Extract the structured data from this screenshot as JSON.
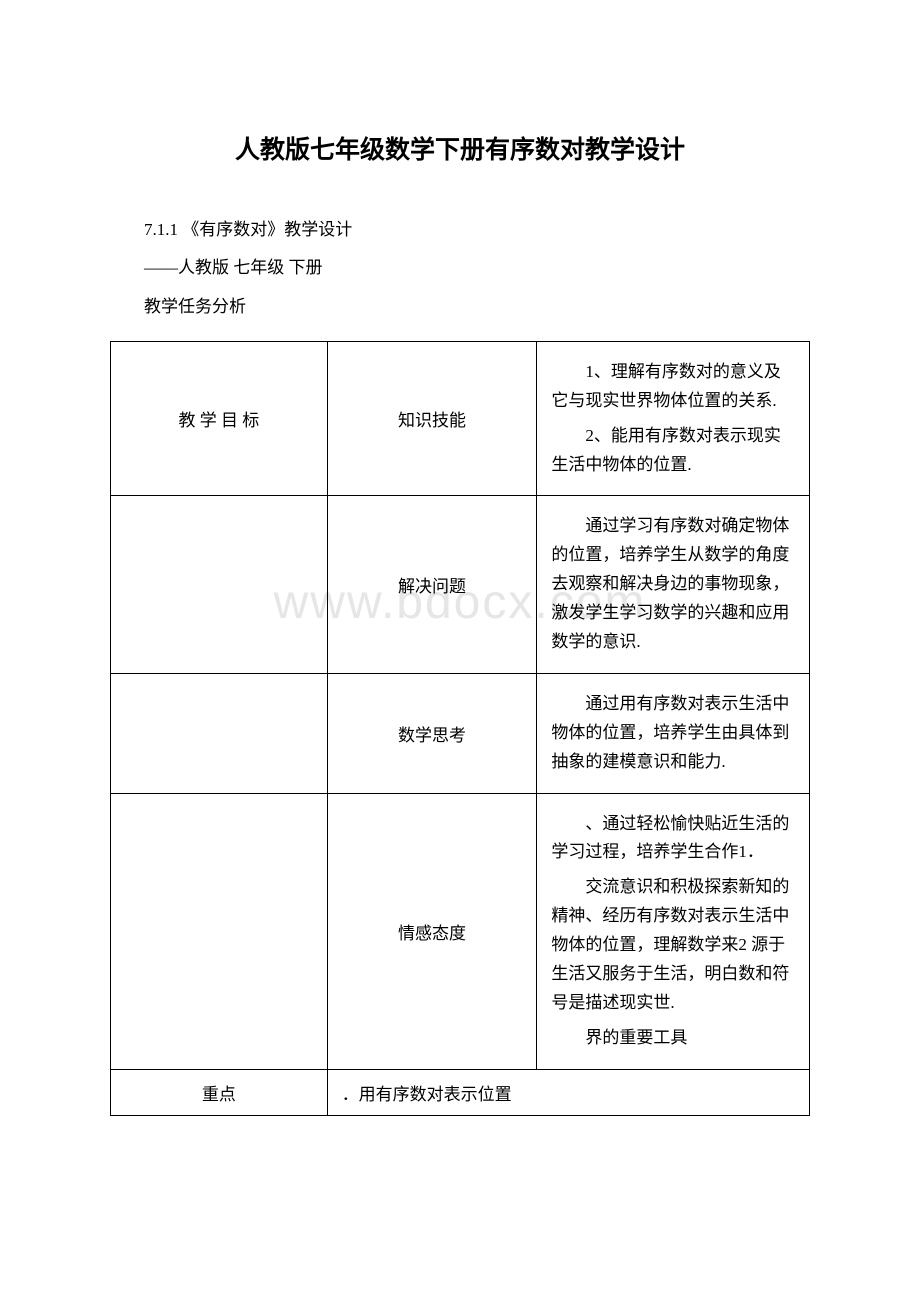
{
  "watermark": "www.bdocx.com",
  "title": "人教版七年级数学下册有序数对教学设计",
  "intro": {
    "line1": "7.1.1 《有序数对》教学设计",
    "line2": " ——人教版 七年级 下册",
    "line3": "教学任务分析"
  },
  "table": {
    "rows": [
      {
        "col1": "教 学 目 标",
        "col2": "知识技能",
        "col3": [
          "1、理解有序数对的意义及它与现实世界物体位置的关系.",
          "2、能用有序数对表示现实生活中物体的位置."
        ]
      },
      {
        "col1": "",
        "col2": "解决问题",
        "col3": [
          "通过学习有序数对确定物体的位置，培养学生从数学的角度去观察和解决身边的事物现象，激发学生学习数学的兴趣和应用数学的意识."
        ]
      },
      {
        "col1": "",
        "col2": "数学思考",
        "col3": [
          "通过用有序数对表示生活中物体的位置，培养学生由具体到抽象的建模意识和能力."
        ]
      },
      {
        "col1": "",
        "col2": "情感态度",
        "col3": [
          "、通过轻松愉快贴近生活的学习过程，培养学生合作1．",
          "交流意识和积极探索新知的精神、经历有序数对表示生活中物体的位置，理解数学来2 源于生活又服务于生活，明白数和符号是描述现实世.",
          "界的重要工具"
        ]
      },
      {
        "col1": "重点",
        "col2": "．用有序数对表示位置",
        "col3": [
          ""
        ]
      }
    ]
  }
}
